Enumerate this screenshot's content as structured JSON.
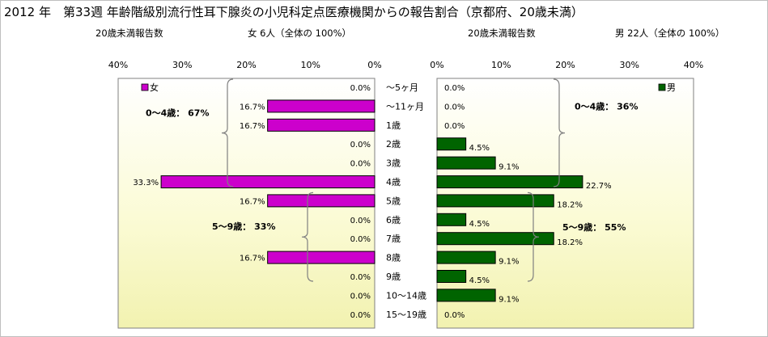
{
  "title": "2012 年　第33週 年齢階級別流行性耳下腺炎の小児科定点医療機関からの報告割合（京都府、20歳未満）",
  "left_subtitle": {
    "label": "20歳未満報告数",
    "count": "女 6人（全体の 100%）"
  },
  "right_subtitle": {
    "label": "20歳未満報告数",
    "count": "男 22人（全体の 100%）"
  },
  "colors": {
    "female": "#cc00cc",
    "male": "#006400",
    "bracket": "#808080"
  },
  "chart_data": [
    {
      "type": "bar",
      "orientation": "horizontal",
      "direction": "right-to-left",
      "legend": "女",
      "legend_position": "top-left",
      "xlim": [
        0,
        40
      ],
      "ticks": [
        "40%",
        "30%",
        "20%",
        "10%",
        "0%"
      ],
      "categories": [
        "～5ヶ月",
        "～11ヶ月",
        "1歳",
        "2歳",
        "3歳",
        "4歳",
        "5歳",
        "6歳",
        "7歳",
        "8歳",
        "9歳",
        "10～14歳",
        "15～19歳"
      ],
      "values": [
        0.0,
        16.7,
        16.7,
        0.0,
        0.0,
        33.3,
        16.7,
        0.0,
        0.0,
        16.7,
        0.0,
        0.0,
        0.0
      ],
      "labels": [
        "0.0%",
        "16.7%",
        "16.7%",
        "0.0%",
        "0.0%",
        "33.3%",
        "16.7%",
        "0.0%",
        "0.0%",
        "16.7%",
        "0.0%",
        "0.0%",
        "0.0%"
      ],
      "annotations": [
        {
          "text": "0～4歳： 67%",
          "range": [
            0,
            5
          ]
        },
        {
          "text": "5～9歳： 33%",
          "range": [
            6,
            10
          ]
        }
      ]
    },
    {
      "type": "bar",
      "orientation": "horizontal",
      "direction": "left-to-right",
      "legend": "男",
      "legend_position": "top-right",
      "xlim": [
        0,
        40
      ],
      "ticks": [
        "0%",
        "10%",
        "20%",
        "30%",
        "40%"
      ],
      "categories": [
        "～5ヶ月",
        "～11ヶ月",
        "1歳",
        "2歳",
        "3歳",
        "4歳",
        "5歳",
        "6歳",
        "7歳",
        "8歳",
        "9歳",
        "10～14歳",
        "15～19歳"
      ],
      "values": [
        0.0,
        0.0,
        0.0,
        4.5,
        9.1,
        22.7,
        18.2,
        4.5,
        18.2,
        9.1,
        4.5,
        9.1,
        0.0
      ],
      "labels": [
        "0.0%",
        "0.0%",
        "0.0%",
        "4.5%",
        "9.1%",
        "22.7%",
        "18.2%",
        "4.5%",
        "18.2%",
        "9.1%",
        "4.5%",
        "9.1%",
        "0.0%"
      ],
      "annotations": [
        {
          "text": "0～4歳： 36%",
          "range": [
            0,
            5
          ]
        },
        {
          "text": "5～9歳： 55%",
          "range": [
            6,
            10
          ]
        }
      ]
    }
  ]
}
